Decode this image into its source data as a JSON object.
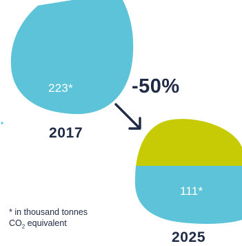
{
  "colors": {
    "baseline_blob": "#5cc3d9",
    "target_blob_remaining": "#5cc3d9",
    "target_blob_reduction": "#c6cb06",
    "text_dark": "#1f2a44",
    "text_on_blob": "#ffffff"
  },
  "baseline": {
    "year": "2017",
    "value_label": "223*",
    "value": 223
  },
  "target": {
    "year": "2025",
    "value_label": "111*",
    "value": 111
  },
  "change": {
    "label": "-50%",
    "arrow": "arrow-down-right-icon"
  },
  "footnote": {
    "line1": "* in thousand tonnes",
    "line2_prefix": "CO",
    "line2_sub": "2",
    "line2_suffix": " equivalent"
  }
}
